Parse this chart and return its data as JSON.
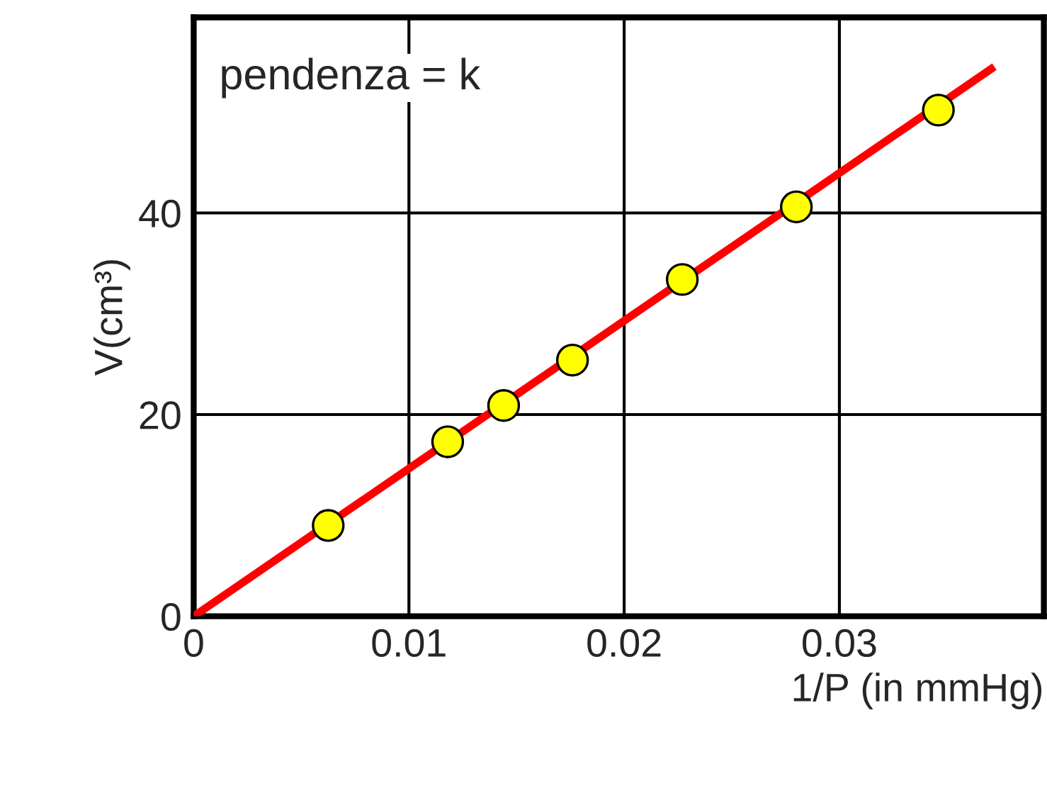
{
  "chart_data": {
    "type": "scatter",
    "xlabel": "1/P (in mmHg)",
    "ylabel": "V(cm³)",
    "annotations": [
      "pendenza = k"
    ],
    "series": [
      {
        "type": "line",
        "marker": "none",
        "color": "#ff0000",
        "x": [
          0,
          0.0372
        ],
        "values": [
          0,
          54.5
        ]
      },
      {
        "marker": "circle",
        "color": "#ffff00",
        "x": [
          0.00625,
          0.0118,
          0.0144,
          0.0176,
          0.0227,
          0.028,
          0.0346
        ],
        "values": [
          9.0,
          17.3,
          20.9,
          25.4,
          33.4,
          40.6,
          50.2
        ]
      }
    ],
    "xlim": [
      0,
      0.0395
    ],
    "ylim": [
      0,
      59.4
    ],
    "xticks": [
      0,
      0.01,
      0.02,
      0.03
    ],
    "yticks": [
      0,
      20,
      40
    ],
    "grid": true
  }
}
